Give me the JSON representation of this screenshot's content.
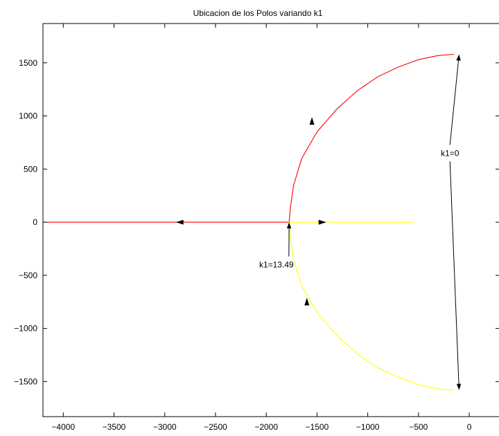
{
  "chart_data": {
    "type": "line",
    "title": "Ubicacion de los Polos variando k1",
    "xlabel": "",
    "ylabel": "",
    "xlim": [
      -4200,
      300
    ],
    "ylim": [
      -1830,
      1870
    ],
    "x_ticks": [
      -4000,
      -3500,
      -3000,
      -2500,
      -2000,
      -1500,
      -1000,
      -500,
      0
    ],
    "x_tick_labels": [
      "−4000",
      "−3500",
      "−3000",
      "−2500",
      "−2000",
      "−1500",
      "−1000",
      "−500",
      "0"
    ],
    "y_ticks": [
      1500,
      1000,
      500,
      0,
      -500,
      -1000,
      -1500
    ],
    "y_tick_labels": [
      "1500",
      "1000",
      "500",
      "0",
      "−500",
      "−1000",
      "−1500"
    ],
    "grid": false,
    "series": [
      {
        "color": "#ff0000",
        "points": [
          [
            -150,
            1580
          ],
          [
            -300,
            1570
          ],
          [
            -500,
            1530
          ],
          [
            -700,
            1460
          ],
          [
            -900,
            1370
          ],
          [
            -1100,
            1240
          ],
          [
            -1300,
            1070
          ],
          [
            -1500,
            850
          ],
          [
            -1650,
            600
          ],
          [
            -1730,
            350
          ],
          [
            -1760,
            150
          ],
          [
            -1775,
            0
          ],
          [
            -2000,
            0
          ],
          [
            -2500,
            0
          ],
          [
            -3000,
            0
          ],
          [
            -3500,
            0
          ],
          [
            -4000,
            0
          ],
          [
            -4200,
            0
          ]
        ]
      },
      {
        "color": "#ffff00",
        "points": [
          [
            -150,
            -1580
          ],
          [
            -300,
            -1570
          ],
          [
            -500,
            -1530
          ],
          [
            -700,
            -1460
          ],
          [
            -900,
            -1370
          ],
          [
            -1100,
            -1240
          ],
          [
            -1300,
            -1070
          ],
          [
            -1500,
            -850
          ],
          [
            -1650,
            -600
          ],
          [
            -1730,
            -350
          ],
          [
            -1760,
            -150
          ],
          [
            -1775,
            0
          ],
          [
            -1500,
            0
          ],
          [
            -1000,
            0
          ],
          [
            -550,
            0
          ]
        ]
      }
    ],
    "direction_arrows": [
      {
        "x": -1550,
        "y": 950,
        "dir": "up"
      },
      {
        "x": -2850,
        "y": 0,
        "dir": "left"
      },
      {
        "x": -1450,
        "y": 0,
        "dir": "right"
      },
      {
        "x": -1600,
        "y": -750,
        "dir": "up"
      }
    ],
    "annotations": [
      {
        "text": "k1=0",
        "x": -190,
        "y": 650,
        "targets": [
          [
            -100,
            1580
          ],
          [
            -100,
            -1580
          ]
        ]
      },
      {
        "text": "k1=13.49",
        "x": -1900,
        "y": -400,
        "targets": [
          [
            -1775,
            0
          ]
        ]
      }
    ]
  }
}
